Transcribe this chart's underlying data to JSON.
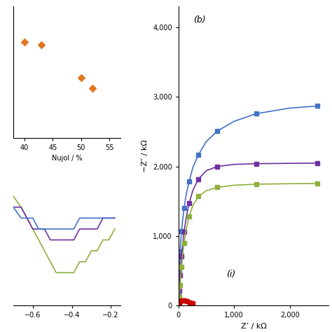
{
  "scatter_x": [
    40,
    43,
    50,
    52
  ],
  "scatter_y": [
    3.5,
    3.4,
    2.2,
    1.8
  ],
  "scatter_color": "#E07820",
  "scatter_xlabel": "Nujol / %",
  "scatter_xlim": [
    38,
    57
  ],
  "scatter_ylim": [
    0,
    4.8
  ],
  "scatter_xticks": [
    40,
    45,
    50,
    55
  ],
  "scatter_yticks": [],
  "cv_x": [
    -0.7,
    -0.66,
    -0.63,
    -0.6,
    -0.57,
    -0.54,
    -0.51,
    -0.48,
    -0.45,
    -0.42,
    -0.39,
    -0.36,
    -0.33,
    -0.3,
    -0.27,
    -0.24,
    -0.21,
    -0.18
  ],
  "cv_green": [
    0.002,
    0.001,
    0.0,
    -0.001,
    -0.002,
    -0.003,
    -0.004,
    -0.005,
    -0.005,
    -0.005,
    -0.005,
    -0.004,
    -0.004,
    -0.003,
    -0.003,
    -0.002,
    -0.002,
    -0.001
  ],
  "cv_purple": [
    0.001,
    0.001,
    0.0,
    -0.001,
    -0.001,
    -0.001,
    -0.002,
    -0.002,
    -0.002,
    -0.002,
    -0.002,
    -0.001,
    -0.001,
    -0.001,
    -0.001,
    0.0,
    0.0,
    0.0
  ],
  "cv_blue": [
    0.001,
    0.0,
    0.0,
    0.0,
    -0.001,
    -0.001,
    -0.001,
    -0.001,
    -0.001,
    -0.001,
    -0.001,
    0.0,
    0.0,
    0.0,
    0.0,
    0.0,
    0.0,
    0.0
  ],
  "cv_xlim": [
    -0.7,
    -0.15
  ],
  "cv_ylim": [
    -0.008,
    0.004
  ],
  "cv_xticks": [
    -0.6,
    -0.4,
    -0.2
  ],
  "eis_blue_x": [
    5,
    10,
    15,
    20,
    30,
    40,
    55,
    75,
    100,
    140,
    190,
    260,
    360,
    500,
    700,
    1000,
    1400,
    2000,
    2500
  ],
  "eis_blue_y": [
    150,
    320,
    480,
    600,
    780,
    920,
    1070,
    1230,
    1400,
    1600,
    1780,
    1990,
    2170,
    2360,
    2510,
    2650,
    2760,
    2840,
    2870
  ],
  "eis_purple_x": [
    5,
    10,
    15,
    20,
    30,
    40,
    55,
    75,
    100,
    140,
    190,
    260,
    360,
    500,
    700,
    1000,
    1400,
    2000,
    2500
  ],
  "eis_purple_y": [
    60,
    130,
    210,
    300,
    430,
    560,
    710,
    880,
    1060,
    1270,
    1470,
    1660,
    1820,
    1940,
    2000,
    2030,
    2040,
    2045,
    2048
  ],
  "eis_green_x": [
    5,
    10,
    15,
    20,
    30,
    40,
    55,
    75,
    100,
    140,
    190,
    260,
    360,
    500,
    700,
    1000,
    1400,
    2000,
    2500
  ],
  "eis_green_y": [
    30,
    70,
    120,
    180,
    290,
    410,
    560,
    720,
    900,
    1100,
    1280,
    1440,
    1570,
    1650,
    1700,
    1730,
    1745,
    1752,
    1755
  ],
  "eis_red_x": [
    5,
    15,
    30,
    60,
    100,
    150,
    200,
    250
  ],
  "eis_red_y": [
    15,
    40,
    65,
    75,
    70,
    58,
    45,
    35
  ],
  "eis_xlim": [
    0,
    2700
  ],
  "eis_ylim": [
    0,
    4300
  ],
  "eis_xticks": [
    0,
    1000,
    2000
  ],
  "eis_yticks": [
    0,
    1000,
    2000,
    3000,
    4000
  ],
  "blue_color": "#4472C4",
  "purple_color": "#7030A0",
  "green_color": "#8FAF3C",
  "red_color": "#CC0000",
  "label_b": "(b)",
  "label_i": "(i)"
}
